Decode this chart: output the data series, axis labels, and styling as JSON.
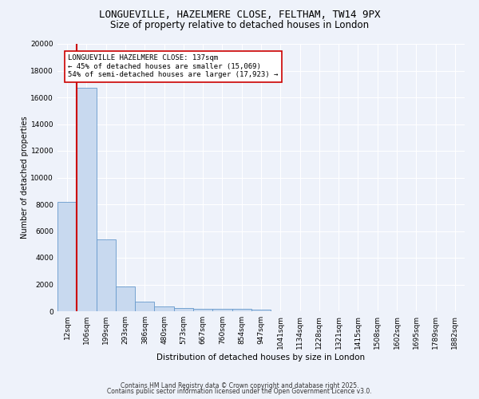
{
  "title_line1": "LONGUEVILLE, HAZELMERE CLOSE, FELTHAM, TW14 9PX",
  "title_line2": "Size of property relative to detached houses in London",
  "xlabel": "Distribution of detached houses by size in London",
  "ylabel": "Number of detached properties",
  "bar_categories": [
    "12sqm",
    "106sqm",
    "199sqm",
    "293sqm",
    "386sqm",
    "480sqm",
    "573sqm",
    "667sqm",
    "760sqm",
    "854sqm",
    "947sqm",
    "1041sqm",
    "1134sqm",
    "1228sqm",
    "1321sqm",
    "1415sqm",
    "1508sqm",
    "1602sqm",
    "1695sqm",
    "1789sqm",
    "1882sqm"
  ],
  "bar_values": [
    8200,
    16700,
    5400,
    1850,
    700,
    350,
    250,
    175,
    175,
    150,
    100,
    0,
    0,
    0,
    0,
    0,
    0,
    0,
    0,
    0,
    0
  ],
  "bar_color": "#c8d9ef",
  "bar_edge_color": "#6699cc",
  "red_line_x": 0.5,
  "red_line_color": "#cc0000",
  "annotation_text": "LONGUEVILLE HAZELMERE CLOSE: 137sqm\n← 45% of detached houses are smaller (15,069)\n54% of semi-detached houses are larger (17,923) →",
  "annotation_box_color": "#ffffff",
  "annotation_border_color": "#cc0000",
  "ylim": [
    0,
    20000
  ],
  "yticks": [
    0,
    2000,
    4000,
    6000,
    8000,
    10000,
    12000,
    14000,
    16000,
    18000,
    20000
  ],
  "footer_line1": "Contains HM Land Registry data © Crown copyright and database right 2025.",
  "footer_line2": "Contains public sector information licensed under the Open Government Licence v3.0.",
  "bg_color": "#eef2fa",
  "plot_bg_color": "#eef2fa",
  "grid_color": "#ffffff",
  "title_fontsize": 9,
  "subtitle_fontsize": 8.5,
  "ylabel_fontsize": 7,
  "xlabel_fontsize": 7.5,
  "tick_fontsize": 6.5,
  "ann_fontsize": 6.5,
  "footer_fontsize": 5.5
}
